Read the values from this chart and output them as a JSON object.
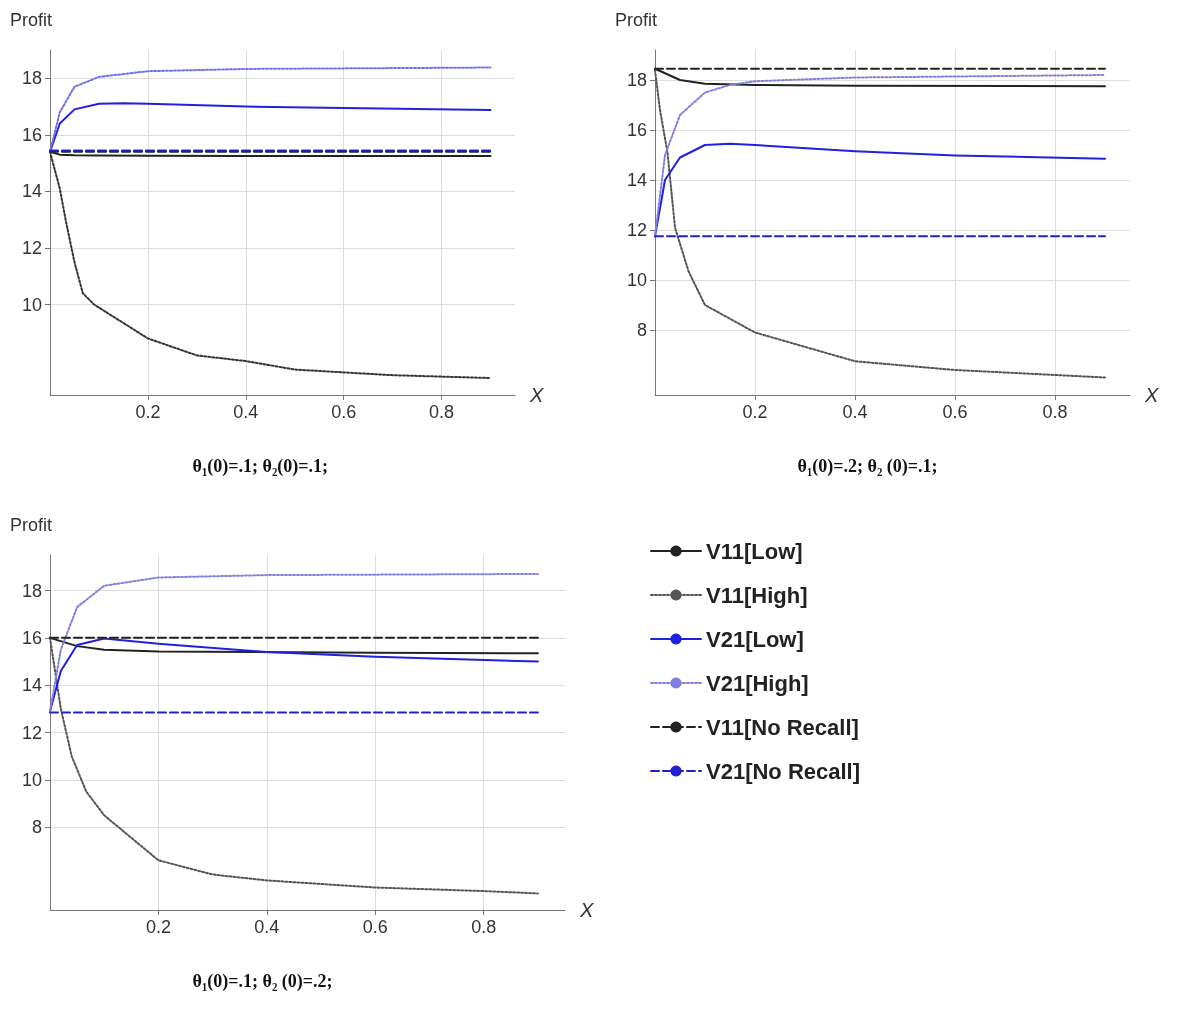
{
  "chart_data": [
    {
      "type": "line",
      "ylabel": "Profit",
      "xlabel": "X",
      "annotations": [
        "θ₁(0)=.1; θ₂(0)=.1;"
      ],
      "xlim": [
        0,
        0.95
      ],
      "xticks": [
        0.2,
        0.4,
        0.6,
        0.8
      ],
      "ylim": [
        6.8,
        19
      ],
      "yticks": [
        10,
        12,
        14,
        16,
        18
      ],
      "grid": true,
      "legend": false,
      "marker": "none",
      "series": [
        {
          "color": "#222222",
          "line_style": "solid",
          "x": [
            0,
            0.02,
            0.05,
            0.1,
            0.2,
            0.4,
            0.6,
            0.9
          ],
          "values": [
            15.4,
            15.3,
            15.28,
            15.27,
            15.26,
            15.25,
            15.25,
            15.25
          ]
        },
        {
          "color": "#333333",
          "line_style": "dotted",
          "x": [
            0,
            0.02,
            0.033,
            0.05,
            0.067,
            0.09,
            0.2,
            0.3,
            0.4,
            0.5,
            0.6,
            0.7,
            0.8,
            0.9
          ],
          "values": [
            15.4,
            14.1,
            12.9,
            11.5,
            10.4,
            10.0,
            8.8,
            8.2,
            8.0,
            7.7,
            7.6,
            7.5,
            7.45,
            7.4
          ]
        },
        {
          "color": "#2020e0",
          "line_style": "solid",
          "x": [
            0,
            0.02,
            0.05,
            0.1,
            0.15,
            0.2,
            0.4,
            0.6,
            0.9
          ],
          "values": [
            15.4,
            16.4,
            16.9,
            17.1,
            17.12,
            17.1,
            17.0,
            16.95,
            16.88
          ]
        },
        {
          "color": "#7070e8",
          "line_style": "dotted",
          "x": [
            0,
            0.02,
            0.05,
            0.1,
            0.2,
            0.4,
            0.9
          ],
          "values": [
            15.4,
            16.8,
            17.7,
            18.05,
            18.25,
            18.33,
            18.38
          ]
        },
        {
          "color": "#222222",
          "line_style": "dashed",
          "x": [
            0,
            0.9
          ],
          "values": [
            15.4,
            15.4
          ]
        },
        {
          "color": "#2020d0",
          "line_style": "dashed",
          "x": [
            0,
            0.9
          ],
          "values": [
            15.45,
            15.45
          ]
        }
      ]
    },
    {
      "type": "line",
      "ylabel": "Profit",
      "xlabel": "X",
      "annotations": [
        "θ₁(0)=.2; θ₂ (0)=.1;"
      ],
      "xlim": [
        0,
        0.95
      ],
      "xticks": [
        0.2,
        0.4,
        0.6,
        0.8
      ],
      "ylim": [
        5.4,
        19.2
      ],
      "yticks": [
        8,
        10,
        12,
        14,
        16,
        18
      ],
      "grid": true,
      "legend": false,
      "marker": "none",
      "series": [
        {
          "color": "#222222",
          "line_style": "solid",
          "x": [
            0,
            0.05,
            0.1,
            0.2,
            0.4,
            0.9
          ],
          "values": [
            18.45,
            18.0,
            17.85,
            17.8,
            17.77,
            17.75
          ]
        },
        {
          "color": "#555555",
          "line_style": "dotted",
          "x": [
            0,
            0.01,
            0.025,
            0.04,
            0.067,
            0.1,
            0.2,
            0.4,
            0.6,
            0.8,
            0.9
          ],
          "values": [
            18.4,
            16.8,
            15.1,
            12.1,
            10.35,
            9.0,
            7.9,
            6.75,
            6.4,
            6.2,
            6.1
          ]
        },
        {
          "color": "#2020e0",
          "line_style": "solid",
          "x": [
            0,
            0.02,
            0.05,
            0.1,
            0.15,
            0.2,
            0.4,
            0.6,
            0.9
          ],
          "values": [
            11.75,
            14.0,
            14.9,
            15.4,
            15.45,
            15.4,
            15.15,
            14.98,
            14.85
          ]
        },
        {
          "color": "#8080e0",
          "line_style": "dotted",
          "x": [
            0,
            0.02,
            0.05,
            0.1,
            0.15,
            0.2,
            0.4,
            0.9
          ],
          "values": [
            11.75,
            15.0,
            16.6,
            17.5,
            17.8,
            17.95,
            18.1,
            18.2
          ]
        },
        {
          "color": "#222222",
          "line_style": "dashed",
          "x": [
            0,
            0.9
          ],
          "values": [
            18.45,
            18.45
          ]
        },
        {
          "color": "#2020d0",
          "line_style": "dashed",
          "x": [
            0,
            0.9
          ],
          "values": [
            11.75,
            11.75
          ]
        }
      ]
    },
    {
      "type": "line",
      "ylabel": "Profit",
      "xlabel": "X",
      "annotations": [
        "θ₁(0)=.1; θ₂ (0)=.2;"
      ],
      "xlim": [
        0,
        0.95
      ],
      "xticks": [
        0.2,
        0.4,
        0.6,
        0.8
      ],
      "ylim": [
        4.5,
        19.5
      ],
      "yticks": [
        8,
        10,
        12,
        14,
        16,
        18
      ],
      "grid": true,
      "legend": "right",
      "marker": "none",
      "series": [
        {
          "name": "V11[Low]",
          "color": "#222222",
          "line_style": "solid",
          "x": [
            0,
            0.05,
            0.1,
            0.2,
            0.6,
            0.9
          ],
          "values": [
            16.0,
            15.65,
            15.5,
            15.42,
            15.37,
            15.35
          ]
        },
        {
          "name": "V11[High]",
          "color": "#555555",
          "line_style": "dotted",
          "x": [
            0,
            0.02,
            0.04,
            0.067,
            0.1,
            0.2,
            0.3,
            0.4,
            0.6,
            0.8,
            0.9
          ],
          "values": [
            16.0,
            13.0,
            11.0,
            9.5,
            8.5,
            6.6,
            6.0,
            5.75,
            5.45,
            5.3,
            5.2
          ]
        },
        {
          "name": "V21[Low]",
          "color": "#2020e0",
          "line_style": "solid",
          "x": [
            0,
            0.02,
            0.05,
            0.1,
            0.2,
            0.4,
            0.6,
            0.9
          ],
          "values": [
            12.9,
            14.6,
            15.7,
            15.97,
            15.75,
            15.4,
            15.2,
            15.0
          ]
        },
        {
          "name": "V21[High]",
          "color": "#8080e0",
          "line_style": "dotted",
          "x": [
            0,
            0.02,
            0.05,
            0.1,
            0.2,
            0.4,
            0.9
          ],
          "values": [
            12.9,
            15.5,
            17.3,
            18.2,
            18.55,
            18.65,
            18.7
          ]
        },
        {
          "name": "V11[No Recall]",
          "color": "#222222",
          "line_style": "dashed",
          "x": [
            0,
            0.9
          ],
          "values": [
            16.0,
            16.0
          ]
        },
        {
          "name": "V21[No Recall]",
          "color": "#2020d0",
          "line_style": "dashed",
          "x": [
            0,
            0.9
          ],
          "values": [
            12.85,
            12.85
          ]
        }
      ]
    }
  ]
}
